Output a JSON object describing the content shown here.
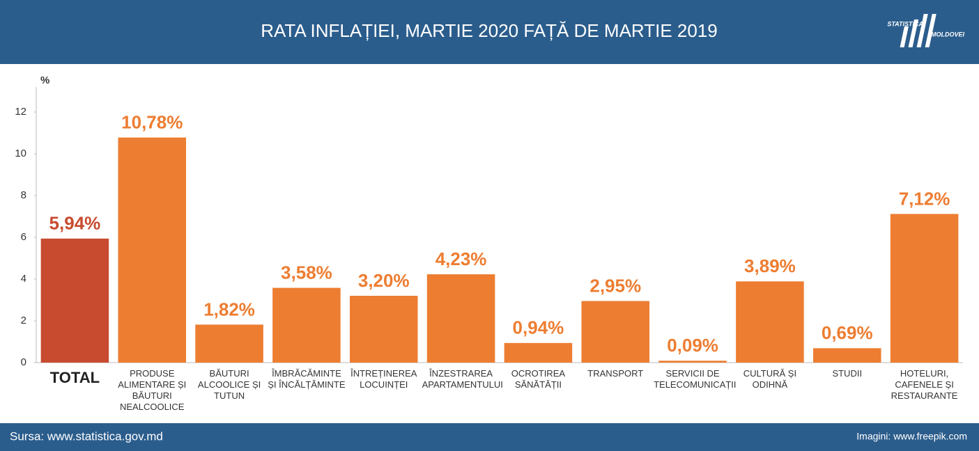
{
  "header": {
    "title": "RATA INFLAȚIEI, MARTIE 2020 FAȚĂ DE MARTIE 2019",
    "logo": [
      "STATISTICA",
      "MOLDOVEI"
    ]
  },
  "chart_data": {
    "type": "bar",
    "y_label": "%",
    "categories": [
      "TOTAL",
      "PRODUSE ALIMENTARE ȘI BĂUTURI NEALCOOLICE",
      "BĂUTURI ALCOOLICE ȘI TUTUN",
      "ÎMBRĂCĂMINTE ȘI ÎNCĂLȚĂMINTE",
      "ÎNTREȚINEREA LOCUINȚEI",
      "ÎNZESTRAREA APARTAMENTULUI",
      "OCROTIREA SĂNĂTĂȚII",
      "TRANSPORT",
      "SERVICII DE TELECOMUNICAȚII",
      "CULTURĂ ȘI ODIHNĂ",
      "STUDII",
      "HOTELURI, CAFENELE ȘI RESTAURANTE"
    ],
    "values": [
      5.94,
      10.78,
      1.82,
      3.58,
      3.2,
      4.23,
      0.94,
      2.95,
      0.09,
      3.89,
      0.69,
      7.12
    ],
    "value_labels": [
      "5,94%",
      "10,78%",
      "1,82%",
      "3,58%",
      "3,20%",
      "4,23%",
      "0,94%",
      "2,95%",
      "0,09%",
      "3,89%",
      "0,69%",
      "7,12%"
    ],
    "colors": [
      "#c84b30",
      "#ed7d31",
      "#ed7d31",
      "#ed7d31",
      "#ed7d31",
      "#ed7d31",
      "#ed7d31",
      "#ed7d31",
      "#ed7d31",
      "#ed7d31",
      "#ed7d31",
      "#ed7d31"
    ],
    "ylim": [
      0,
      13.2
    ],
    "yticks": [
      0,
      2,
      4,
      6,
      8,
      10,
      12
    ],
    "grid": false
  },
  "footer": {
    "source": "Sursa: www.statistica.gov.md",
    "credit": "Imagini: www.freepik.com"
  }
}
